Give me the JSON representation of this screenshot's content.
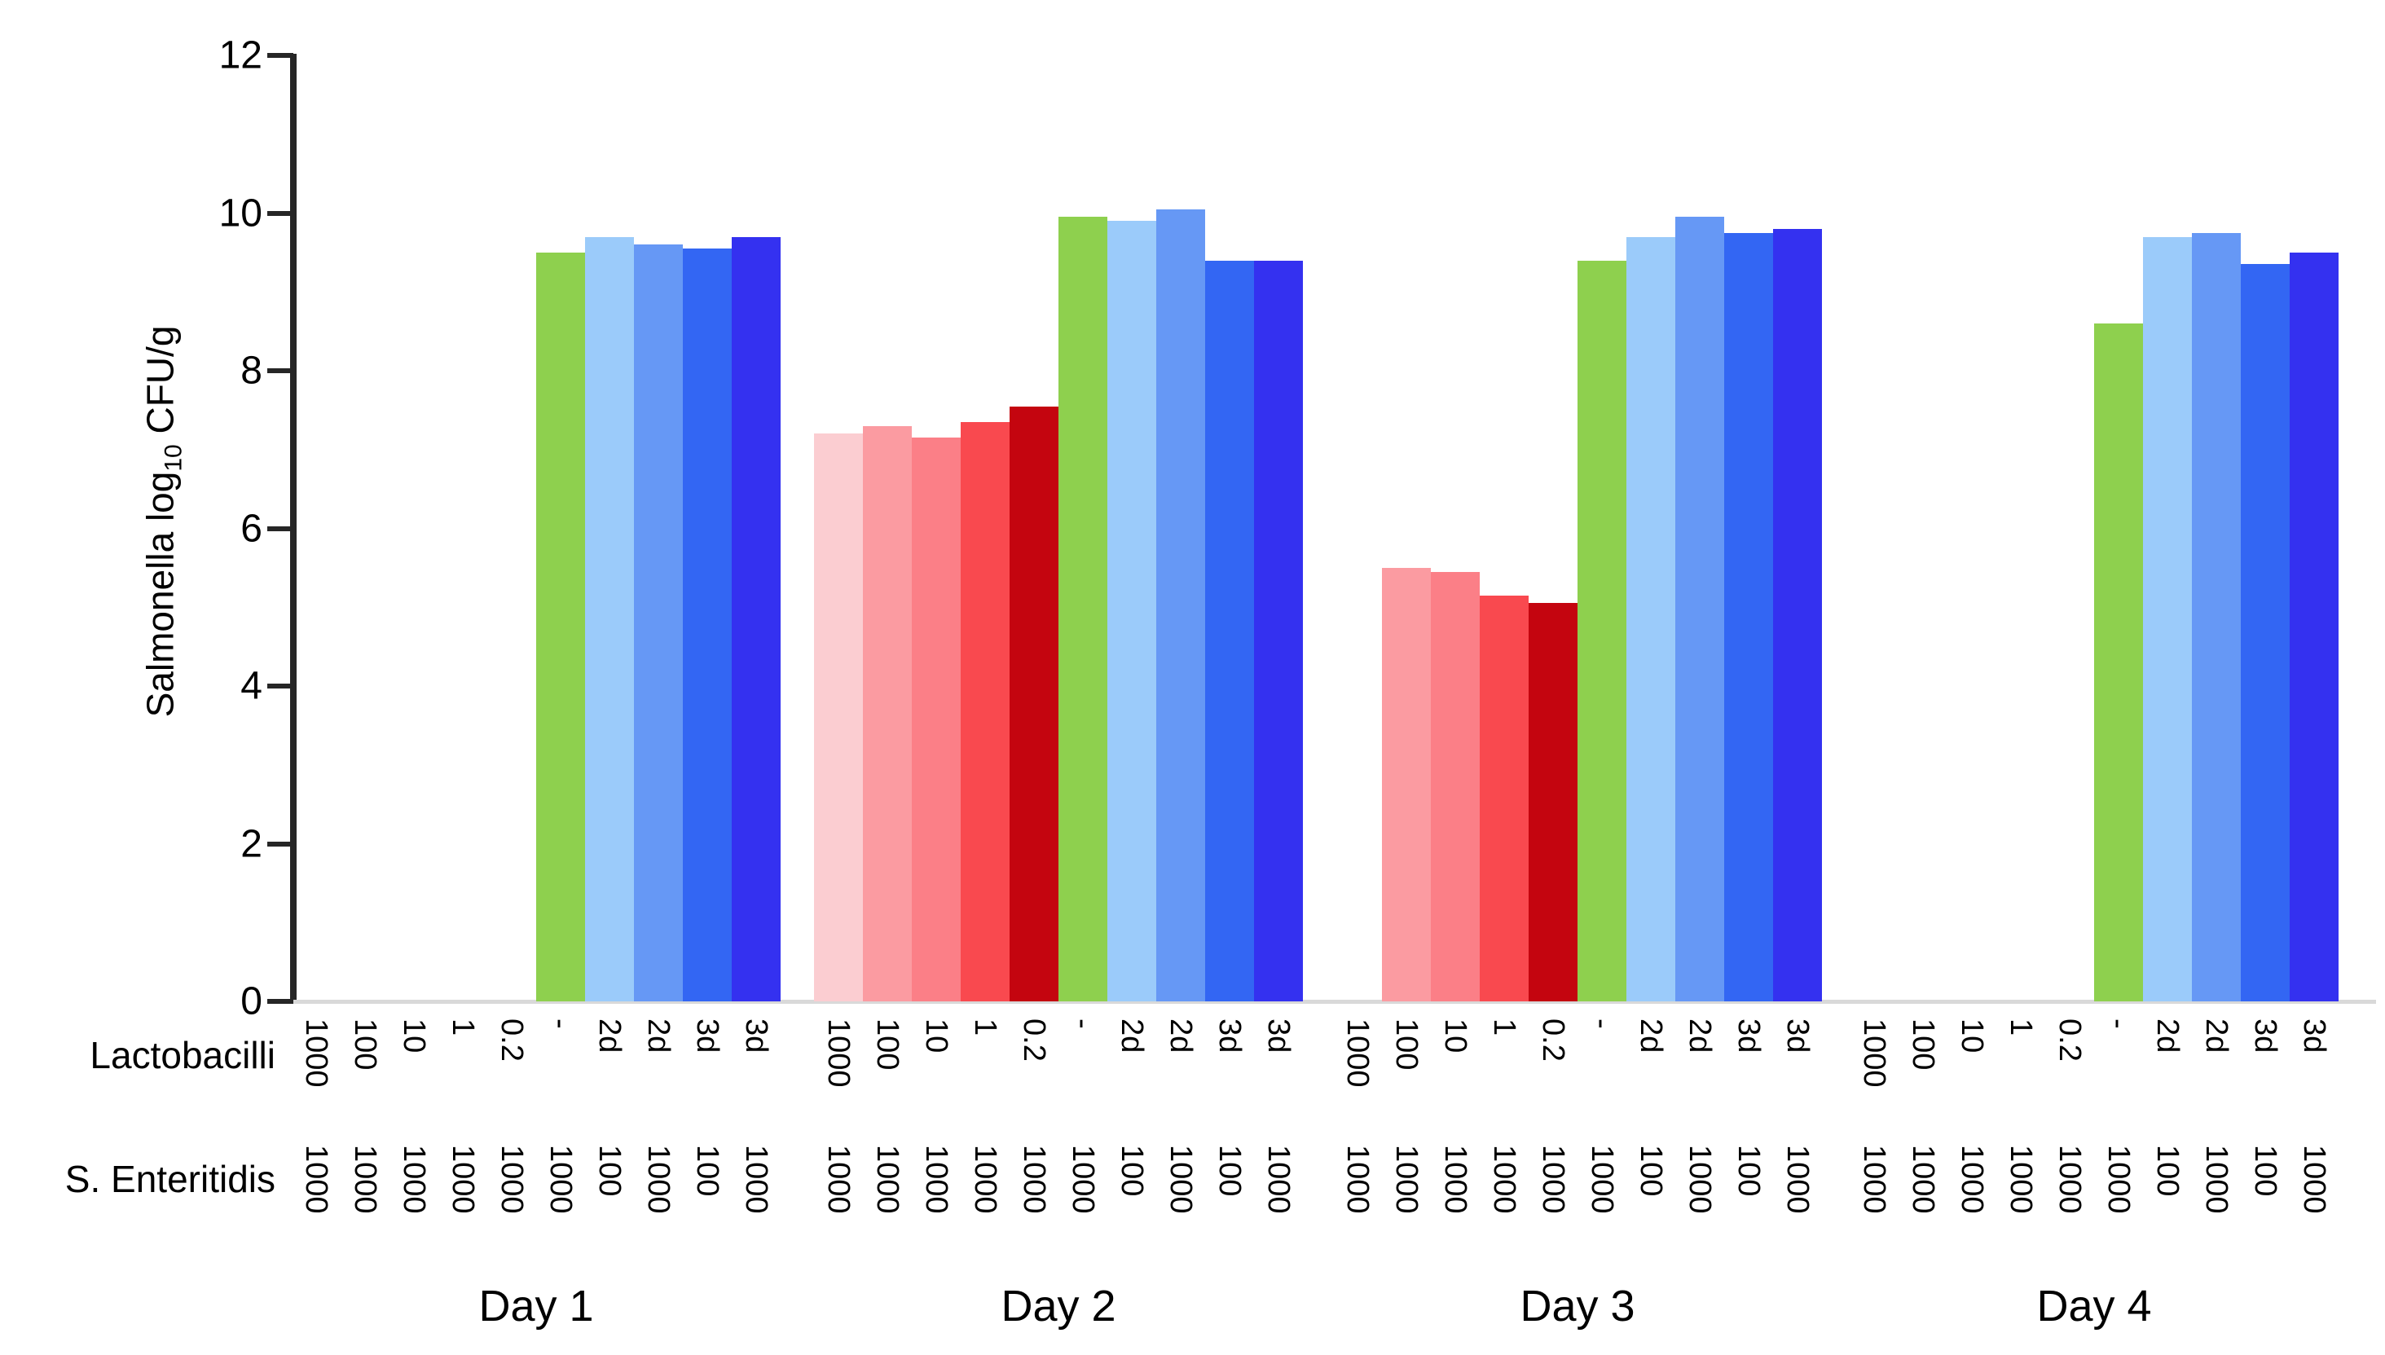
{
  "y_axis_title": {
    "prefix": "Salmonella log",
    "sub": "10",
    "suffix": " CFU/g"
  },
  "row_labels": {
    "lactobacilli": "Lactobacilli",
    "s_enteritidis": "S. Enteritidis"
  },
  "chart_data": {
    "type": "bar",
    "title": "",
    "xlabel": "",
    "ylabel": "Salmonella log10 CFU/g",
    "ylim": [
      0,
      12
    ],
    "ytick_values": [
      12,
      10,
      8,
      6,
      4,
      2,
      0
    ],
    "grid": false,
    "legend": false,
    "x_row_labels": [
      "Lactobacilli",
      "S. Enteritidis"
    ],
    "slot_colors": [
      "#fbcdd1",
      "#fb9ba1",
      "#fb7f87",
      "#f9494f",
      "#c4050f",
      "#8ed04e",
      "#9bcbfa",
      "#6698f5",
      "#3366f3",
      "#3431f0"
    ],
    "groups": [
      {
        "label": "Day 1",
        "lactobacilli": [
          "1000",
          "100",
          "10",
          "1",
          "0.2",
          "-",
          "2d",
          "2d",
          "3d",
          "3d"
        ],
        "s_enteritidis": [
          "1000",
          "1000",
          "1000",
          "1000",
          "1000",
          "1000",
          "100",
          "1000",
          "100",
          "1000"
        ],
        "values": [
          null,
          null,
          null,
          null,
          null,
          9.5,
          9.7,
          9.6,
          9.55,
          9.7
        ]
      },
      {
        "label": "Day 2",
        "lactobacilli": [
          "1000",
          "100",
          "10",
          "1",
          "0.2",
          "-",
          "2d",
          "2d",
          "3d",
          "3d"
        ],
        "s_enteritidis": [
          "1000",
          "1000",
          "1000",
          "1000",
          "1000",
          "1000",
          "100",
          "1000",
          "100",
          "1000"
        ],
        "values": [
          7.2,
          7.3,
          7.15,
          7.35,
          7.55,
          9.95,
          9.9,
          10.05,
          9.4,
          9.4
        ]
      },
      {
        "label": "Day 3",
        "lactobacilli": [
          "1000",
          "100",
          "10",
          "1",
          "0.2",
          "-",
          "2d",
          "2d",
          "3d",
          "3d"
        ],
        "s_enteritidis": [
          "1000",
          "1000",
          "1000",
          "1000",
          "1000",
          "1000",
          "100",
          "1000",
          "100",
          "1000"
        ],
        "values": [
          null,
          5.5,
          5.45,
          5.15,
          5.05,
          9.4,
          9.7,
          9.95,
          9.75,
          9.8
        ]
      },
      {
        "label": "Day 4",
        "lactobacilli": [
          "1000",
          "100",
          "10",
          "1",
          "0.2",
          "-",
          "2d",
          "2d",
          "3d",
          "3d"
        ],
        "s_enteritidis": [
          "1000",
          "1000",
          "1000",
          "1000",
          "1000",
          "1000",
          "100",
          "1000",
          "100",
          "1000"
        ],
        "values": [
          null,
          null,
          null,
          null,
          null,
          8.6,
          9.7,
          9.75,
          9.35,
          9.5
        ]
      }
    ]
  }
}
